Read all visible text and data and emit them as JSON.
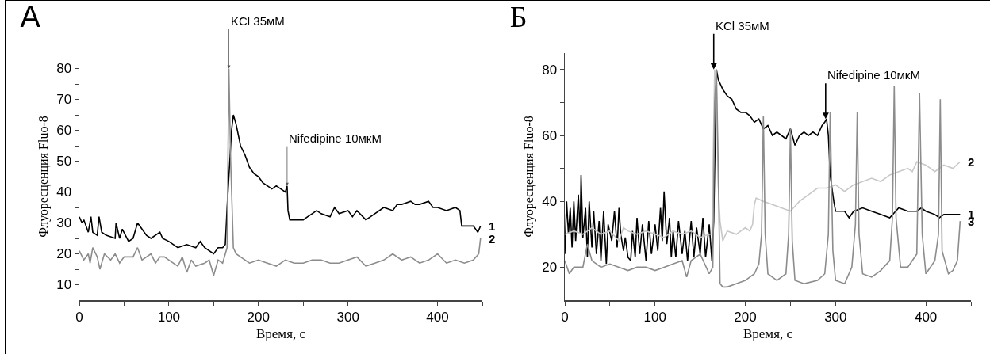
{
  "chart_data": [
    {
      "type": "line",
      "title": "А",
      "xlabel": "Время, с",
      "ylabel": "Флуоресценция Fluo-8",
      "grid": false,
      "legend": false,
      "marker": "none",
      "line_style": "solid",
      "xlim": [
        0,
        450
      ],
      "ylim": [
        5,
        85
      ],
      "xticks": [
        0,
        {
          "value": 50,
          "label": null
        },
        100,
        {
          "value": 150,
          "label": null
        },
        200,
        {
          "value": 250,
          "label": null
        },
        300,
        {
          "value": 350,
          "label": null
        },
        400,
        {
          "value": 450,
          "label": null
        }
      ],
      "yticks": [
        10,
        {
          "value": 15,
          "label": null
        },
        20,
        {
          "value": 25,
          "label": null
        },
        30,
        {
          "value": 35,
          "label": null
        },
        40,
        {
          "value": 45,
          "label": null
        },
        50,
        {
          "value": 55,
          "label": null
        },
        60,
        {
          "value": 65,
          "label": null
        },
        70,
        {
          "value": 75,
          "label": null
        },
        80
      ],
      "annotations": [
        {
          "text": "KCl 35мМ",
          "x": 167,
          "y": 80
        },
        {
          "text": "Nifedipine 10мкМ",
          "x": 232,
          "y": 42
        }
      ],
      "series": [
        {
          "name": "1",
          "color": "#000000",
          "x": [
            0,
            3,
            5,
            10,
            13,
            15,
            20,
            22,
            25,
            30,
            40,
            41,
            45,
            48,
            55,
            60,
            65,
            70,
            75,
            80,
            90,
            93,
            100,
            110,
            120,
            130,
            135,
            140,
            150,
            155,
            160,
            163,
            165,
            170,
            172,
            175,
            180,
            185,
            190,
            195,
            200,
            205,
            210,
            215,
            220,
            225,
            230,
            232,
            233,
            235,
            240,
            250,
            255,
            260,
            265,
            270,
            280,
            285,
            290,
            300,
            305,
            310,
            320,
            330,
            340,
            350,
            355,
            360,
            370,
            375,
            380,
            390,
            395,
            400,
            410,
            420,
            425,
            427,
            430,
            440,
            445,
            448
          ],
          "values": [
            32,
            30,
            31,
            27,
            32,
            27,
            26,
            32,
            27,
            26,
            25,
            30,
            25,
            28,
            24,
            25,
            30,
            28,
            26,
            25,
            27,
            25,
            24,
            22,
            23,
            22,
            24,
            22,
            20,
            22,
            22,
            23,
            35,
            60,
            65,
            62,
            55,
            52,
            48,
            46,
            45,
            43,
            42,
            41,
            42,
            41,
            40,
            42,
            34,
            31,
            31,
            31,
            32,
            33,
            34,
            33,
            32,
            35,
            33,
            34,
            32,
            34,
            31,
            33,
            35,
            34,
            36,
            36,
            37,
            36,
            36,
            37,
            35,
            35,
            34,
            35,
            34,
            29,
            29,
            29,
            27,
            29
          ]
        },
        {
          "name": "2",
          "color": "#8c8c8c",
          "x": [
            0,
            5,
            10,
            12,
            15,
            20,
            23,
            28,
            35,
            40,
            45,
            50,
            60,
            65,
            70,
            80,
            85,
            90,
            95,
            100,
            110,
            115,
            120,
            125,
            130,
            140,
            145,
            150,
            155,
            160,
            163,
            165,
            167,
            169,
            172,
            175,
            180,
            190,
            200,
            210,
            220,
            230,
            240,
            250,
            260,
            270,
            280,
            290,
            300,
            310,
            320,
            330,
            340,
            350,
            360,
            370,
            380,
            390,
            400,
            410,
            420,
            430,
            440,
            446,
            448
          ],
          "values": [
            21,
            18,
            20,
            17,
            22,
            19,
            15,
            20,
            18,
            20,
            17,
            19,
            19,
            22,
            18,
            20,
            17,
            19,
            19,
            18,
            16,
            19,
            14,
            18,
            16,
            17,
            18,
            13,
            18,
            17,
            20,
            22,
            80,
            50,
            22,
            20,
            19,
            17,
            18,
            17,
            16,
            18,
            17,
            17,
            18,
            18,
            17,
            17,
            18,
            19,
            16,
            17,
            18,
            20,
            18,
            19,
            17,
            18,
            20,
            17,
            18,
            17,
            18,
            20,
            25
          ]
        }
      ]
    },
    {
      "type": "line",
      "title": "Б",
      "xlabel": "Время, с",
      "ylabel": "Флуоресценция Fluo-8",
      "grid": false,
      "legend": false,
      "marker": "none",
      "line_style": "solid",
      "xlim": [
        0,
        450
      ],
      "ylim": [
        10,
        85
      ],
      "xticks": [
        0,
        {
          "value": 50,
          "label": null
        },
        100,
        {
          "value": 150,
          "label": null
        },
        200,
        {
          "value": 250,
          "label": null
        },
        300,
        {
          "value": 350,
          "label": null
        },
        400,
        {
          "value": 450,
          "label": null
        }
      ],
      "yticks": [
        20,
        {
          "value": 30,
          "label": null
        },
        40,
        {
          "value": 50,
          "label": null
        },
        60,
        {
          "value": 70,
          "label": null
        },
        80
      ],
      "annotations": [
        {
          "text": "KCl 35мМ",
          "x": 165,
          "y": 80
        },
        {
          "text": "Nifedipine 10мкМ",
          "x": 289,
          "y": 65
        }
      ],
      "series": [
        {
          "name": "1",
          "color": "#000000",
          "x": [
            0,
            2,
            4,
            6,
            8,
            10,
            12,
            15,
            17,
            18,
            20,
            23,
            25,
            27,
            30,
            32,
            35,
            38,
            40,
            43,
            46,
            48,
            52,
            55,
            58,
            60,
            62,
            65,
            67,
            70,
            73,
            75,
            78,
            80,
            83,
            86,
            90,
            93,
            96,
            100,
            103,
            106,
            108,
            110,
            113,
            116,
            118,
            120,
            123,
            126,
            130,
            133,
            136,
            140,
            143,
            146,
            150,
            153,
            156,
            160,
            163,
            165,
            168,
            170,
            175,
            180,
            185,
            190,
            195,
            200,
            205,
            210,
            215,
            220,
            225,
            230,
            235,
            240,
            245,
            250,
            255,
            260,
            265,
            270,
            275,
            280,
            285,
            288,
            290,
            292,
            294,
            296,
            298,
            300,
            310,
            315,
            320,
            330,
            340,
            350,
            360,
            370,
            380,
            390,
            395,
            400,
            410,
            415,
            420,
            430,
            438
          ],
          "values": [
            24,
            40,
            30,
            38,
            26,
            40,
            28,
            42,
            30,
            48,
            29,
            38,
            23,
            40,
            26,
            37,
            24,
            34,
            22,
            37,
            21,
            33,
            28,
            37,
            26,
            38,
            30,
            25,
            29,
            23,
            22,
            31,
            23,
            35,
            24,
            33,
            22,
            34,
            24,
            33,
            25,
            38,
            28,
            43,
            27,
            35,
            23,
            31,
            23,
            34,
            24,
            31,
            22,
            34,
            23,
            32,
            24,
            35,
            23,
            33,
            22,
            34,
            80,
            77,
            74,
            72,
            71,
            68,
            67,
            67,
            66,
            64,
            65,
            62,
            63,
            60,
            61,
            60,
            59,
            62,
            57,
            60,
            61,
            60,
            61,
            60,
            63,
            64,
            65,
            60,
            48,
            44,
            40,
            37,
            37,
            35,
            37,
            38,
            37,
            36,
            35,
            38,
            37,
            37,
            38,
            37,
            36,
            35,
            36,
            36,
            36
          ]
        },
        {
          "name": "2",
          "color": "#c8c8c8",
          "x": [
            0,
            10,
            20,
            30,
            40,
            50,
            60,
            65,
            70,
            80,
            90,
            100,
            110,
            120,
            130,
            140,
            150,
            160,
            163,
            166,
            168,
            170,
            172,
            175,
            180,
            190,
            200,
            205,
            208,
            210,
            212,
            220,
            230,
            240,
            250,
            260,
            270,
            280,
            290,
            300,
            310,
            320,
            330,
            340,
            350,
            360,
            370,
            380,
            385,
            390,
            400,
            410,
            420,
            430,
            438
          ],
          "values": [
            30,
            31,
            30,
            32,
            30,
            31,
            28,
            32,
            31,
            30,
            31,
            30,
            29,
            31,
            30,
            31,
            29,
            30,
            30,
            80,
            75,
            45,
            34,
            28,
            31,
            30,
            32,
            31,
            33,
            39,
            41,
            40,
            39,
            38,
            37,
            40,
            42,
            44,
            44,
            45,
            43,
            45,
            46,
            47,
            46,
            48,
            49,
            50,
            49,
            52,
            51,
            49,
            51,
            50,
            52
          ]
        },
        {
          "name": "3",
          "color": "#8c8c8c",
          "x": [
            0,
            5,
            10,
            20,
            25,
            30,
            40,
            50,
            60,
            70,
            80,
            90,
            100,
            110,
            120,
            130,
            135,
            140,
            150,
            155,
            160,
            164,
            166,
            168,
            170,
            172,
            175,
            180,
            190,
            200,
            210,
            215,
            218,
            220,
            222,
            225,
            235,
            245,
            248,
            250,
            252,
            255,
            265,
            280,
            288,
            292,
            294,
            297,
            300,
            310,
            318,
            322,
            324,
            326,
            330,
            340,
            350,
            360,
            363,
            365,
            367,
            372,
            380,
            390,
            393,
            396,
            400,
            410,
            414,
            416,
            418,
            425,
            430,
            435,
            438
          ],
          "values": [
            22,
            18,
            20,
            20,
            27,
            22,
            20,
            21,
            20,
            19,
            20,
            20,
            19,
            20,
            21,
            22,
            17,
            22,
            24,
            21,
            18,
            20,
            70,
            80,
            50,
            15,
            14,
            14,
            15,
            16,
            18,
            21,
            30,
            66,
            30,
            18,
            16,
            18,
            30,
            62,
            28,
            16,
            15,
            16,
            18,
            30,
            67,
            25,
            16,
            15,
            20,
            33,
            67,
            30,
            18,
            17,
            19,
            22,
            35,
            75,
            35,
            20,
            20,
            24,
            73,
            30,
            18,
            22,
            30,
            71,
            25,
            18,
            19,
            22,
            34
          ]
        }
      ]
    }
  ]
}
